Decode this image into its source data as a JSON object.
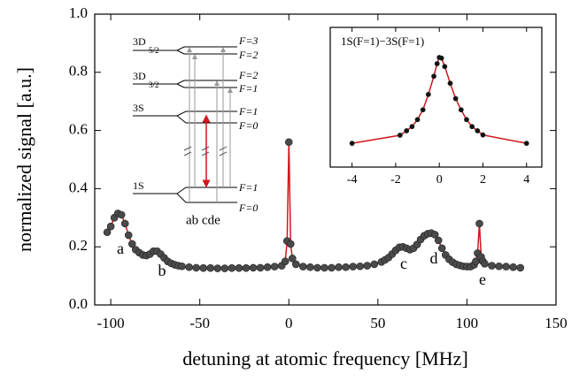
{
  "chart_data": [
    {
      "type": "scatter",
      "x_label": "detuning at atomic frequency [MHz]",
      "y_label": "normalized signal [a.u.]",
      "xlim": [
        -109,
        150
      ],
      "ylim": [
        0,
        1
      ],
      "xticks": [
        -100,
        -50,
        0,
        50,
        100,
        150
      ],
      "yticks": [
        {
          "value": 0,
          "label": "0.0"
        },
        0.2,
        0.4,
        0.6,
        0.8,
        {
          "value": 1,
          "label": "1.0"
        }
      ],
      "marker_color": "#4a4a4a",
      "line_color": "#d0161c",
      "x": [
        -102,
        -100,
        -98,
        -96,
        -94,
        -92,
        -90,
        -88,
        -86,
        -84,
        -82,
        -80,
        -78,
        -76,
        -74,
        -72,
        -70,
        -68,
        -66,
        -64,
        -62,
        -60,
        -56,
        -52,
        -48,
        -44,
        -40,
        -36,
        -32,
        -28,
        -24,
        -20,
        -16,
        -12,
        -8,
        -4,
        -2,
        -1,
        0,
        1,
        2,
        4,
        8,
        12,
        16,
        20,
        24,
        28,
        32,
        36,
        40,
        44,
        48,
        52,
        54,
        56,
        58,
        60,
        62,
        64,
        66,
        68,
        70,
        72,
        74,
        76,
        78,
        80,
        82,
        84,
        86,
        88,
        90,
        92,
        94,
        96,
        98,
        100,
        102,
        104,
        105,
        106,
        107,
        108,
        109,
        110,
        114,
        118,
        122,
        126,
        130
      ],
      "values": [
        0.25,
        0.27,
        0.3,
        0.315,
        0.31,
        0.28,
        0.24,
        0.21,
        0.19,
        0.18,
        0.172,
        0.17,
        0.175,
        0.185,
        0.185,
        0.175,
        0.162,
        0.15,
        0.143,
        0.138,
        0.135,
        0.133,
        0.13,
        0.128,
        0.127,
        0.127,
        0.126,
        0.126,
        0.127,
        0.127,
        0.127,
        0.128,
        0.128,
        0.13,
        0.132,
        0.135,
        0.15,
        0.22,
        0.56,
        0.21,
        0.16,
        0.14,
        0.132,
        0.13,
        0.128,
        0.128,
        0.128,
        0.13,
        0.13,
        0.132,
        0.133,
        0.135,
        0.14,
        0.148,
        0.155,
        0.163,
        0.175,
        0.188,
        0.198,
        0.2,
        0.195,
        0.19,
        0.195,
        0.208,
        0.225,
        0.238,
        0.245,
        0.247,
        0.242,
        0.222,
        0.195,
        0.172,
        0.157,
        0.147,
        0.14,
        0.136,
        0.133,
        0.132,
        0.132,
        0.138,
        0.15,
        0.178,
        0.28,
        0.165,
        0.15,
        0.142,
        0.135,
        0.133,
        0.132,
        0.13,
        0.128
      ],
      "annotations": [
        "a",
        "b",
        "c",
        "d",
        "e"
      ]
    },
    {
      "type": "scatter",
      "title": "1S(F=1)−3S(F=1)",
      "xlim": [
        -5,
        4.7
      ],
      "ylim": [
        0,
        1
      ],
      "xticks": [
        -4,
        -2,
        0,
        2,
        4
      ],
      "marker_color": "#111111",
      "line_color": "#d0161c",
      "x": [
        -4,
        -1.8,
        -1.5,
        -1.25,
        -1,
        -0.75,
        -0.5,
        -0.25,
        -0.1,
        0,
        0.1,
        0.25,
        0.5,
        0.75,
        1,
        1.25,
        1.5,
        1.75,
        2,
        4
      ],
      "values": [
        0.17,
        0.228,
        0.26,
        0.29,
        0.34,
        0.41,
        0.52,
        0.65,
        0.74,
        0.785,
        0.78,
        0.72,
        0.6,
        0.49,
        0.41,
        0.34,
        0.29,
        0.26,
        0.23,
        0.17
      ]
    }
  ],
  "diagram": {
    "d52": "3D",
    "d52_sub": "5/2",
    "d52_f": [
      "F=3",
      "F=2"
    ],
    "d32": "3D",
    "d32_sub": "3/2",
    "d32_f": [
      "F=2",
      "F=1"
    ],
    "s3": "3S",
    "s3_f": [
      "F=1",
      "F=0"
    ],
    "s1": "1S",
    "s1_f": [
      "F=1",
      "F=0"
    ],
    "transitions": "ab cde"
  }
}
